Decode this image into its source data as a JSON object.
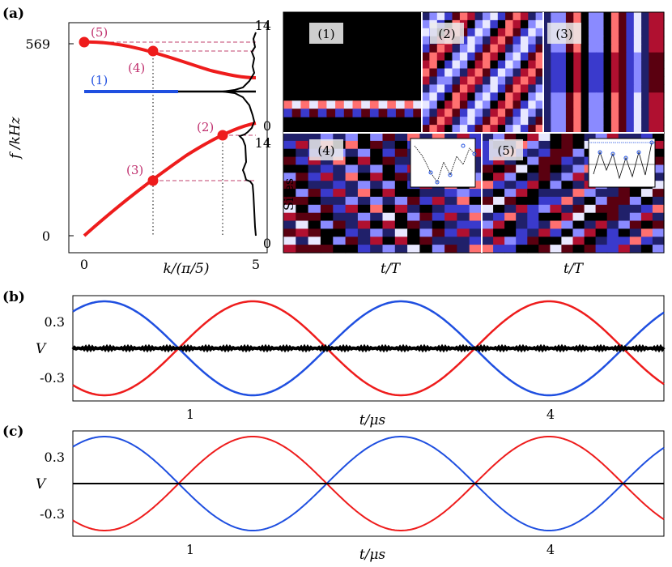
{
  "panel_labels": {
    "a": "(a)",
    "b": "(b)",
    "c": "(c)"
  },
  "panel_a_dispersion": {
    "ylabel": "f /kHz",
    "xlabel": "k/(π/5)",
    "yticks": [
      "569",
      "0"
    ],
    "xticks": [
      "0",
      "5"
    ],
    "mode_labels": [
      "(1)",
      "(2)",
      "(3)",
      "(4)",
      "(5)"
    ],
    "colors": {
      "acoustic": "#ee1c1c",
      "flat": "#1f4fe0",
      "dashed": "#c0406e",
      "label": "#c0306e",
      "flat_label": "#1f4fe0"
    }
  },
  "chart_data": [
    {
      "type": "line",
      "id": "dispersion",
      "xlabel": "k/(π/5)",
      "ylabel": "f /kHz",
      "xlim": [
        0,
        5
      ],
      "ylim": [
        0,
        569
      ],
      "series": [
        {
          "color": "#ee1c1c",
          "x": [
            0,
            0.5,
            1,
            1.5,
            2,
            2.5,
            3,
            3.5,
            4,
            4.5,
            5
          ],
          "values": [
            0,
            70,
            140,
            205,
            262,
            310,
            350,
            380,
            400,
            412,
            418
          ]
        },
        {
          "color": "#ee1c1c",
          "x": [
            0,
            0.5,
            1,
            1.5,
            2,
            2.5,
            3,
            3.5,
            4,
            4.5,
            5
          ],
          "values": [
            569,
            568,
            563,
            555,
            545,
            532,
            518,
            504,
            492,
            482,
            475
          ]
        },
        {
          "color": "#1f4fe0",
          "x": [
            0,
            5
          ],
          "values": [
            418,
            418
          ]
        }
      ],
      "points": [
        {
          "label": "(5)",
          "x": 0,
          "y": 569
        },
        {
          "label": "(4)",
          "x": 2,
          "y": 545
        },
        {
          "label": "(2)",
          "x": 4,
          "y": 400
        },
        {
          "label": "(3)",
          "x": 2,
          "y": 262
        }
      ]
    },
    {
      "type": "heatmap",
      "id": "site-maps",
      "ylabel": "Sites",
      "xlabel": "t/T",
      "yticks": [
        "14",
        "0"
      ],
      "panels": [
        "(1)",
        "(2)",
        "(3)",
        "(4)",
        "(5)"
      ]
    },
    {
      "type": "line",
      "id": "panel-b",
      "xlabel": "t/μs",
      "ylabel": "V",
      "yticks": [
        "0.3",
        "-0.3"
      ],
      "xticks": [
        "1",
        "4"
      ],
      "ylim": [
        -0.45,
        0.45
      ],
      "series": [
        {
          "color": "#1f4fe0",
          "values": [
            0.19,
            0.38,
            0.36,
            0.0,
            -0.37,
            -0.38,
            0.0,
            0.38,
            0.36,
            -0.02,
            -0.37,
            -0.35,
            0.05
          ]
        },
        {
          "color": "#ee1c1c",
          "values": [
            -0.19,
            -0.38,
            -0.36,
            0.0,
            0.37,
            0.38,
            0.0,
            -0.38,
            -0.36,
            0.02,
            0.37,
            0.35,
            -0.05
          ]
        },
        {
          "color": "#000000",
          "values": [
            0,
            0,
            0,
            0,
            0,
            0,
            0,
            0,
            0,
            0,
            0,
            0,
            0
          ]
        }
      ]
    },
    {
      "type": "line",
      "id": "panel-c",
      "xlabel": "t/μs",
      "ylabel": "V",
      "yticks": [
        "0.3",
        "-0.3"
      ],
      "xticks": [
        "1",
        "4"
      ],
      "ylim": [
        -0.45,
        0.45
      ],
      "series": [
        {
          "color": "#1f4fe0",
          "values": [
            0.08,
            0.38,
            0.33,
            -0.05,
            -0.38,
            -0.32,
            0.05,
            0.38,
            0.32,
            -0.05,
            -0.38,
            -0.32,
            0.05
          ]
        },
        {
          "color": "#ee1c1c",
          "values": [
            -0.08,
            -0.38,
            -0.33,
            0.05,
            0.38,
            0.32,
            -0.05,
            -0.38,
            -0.32,
            0.05,
            0.38,
            0.32,
            -0.05
          ]
        },
        {
          "color": "#000000",
          "values": [
            0,
            0,
            0,
            0,
            0,
            0,
            0,
            0,
            0,
            0,
            0,
            0,
            0
          ]
        }
      ]
    }
  ],
  "panel_heatmaps": {
    "ylabel_top": "Sites",
    "ylabel_bottom": "Sites",
    "tick_top_max": "14",
    "tick_top_min": "0",
    "tick_bottom_max": "14",
    "tick_bottom_min": "0",
    "xlabel_left": "t/T",
    "xlabel_right": "t/T",
    "labels": [
      "(1)",
      "(2)",
      "(3)",
      "(4)",
      "(5)"
    ]
  },
  "panel_b": {
    "ylabel": "V",
    "xlabel": "t/μs",
    "ytick_top": "0.3",
    "ytick_bottom": "-0.3",
    "xtick_1": "1",
    "xtick_4": "4"
  },
  "panel_c": {
    "ylabel": "V",
    "xlabel": "t/μs",
    "ytick_top": "0.3",
    "ytick_bottom": "-0.3",
    "xtick_1": "1",
    "xtick_4": "4"
  }
}
